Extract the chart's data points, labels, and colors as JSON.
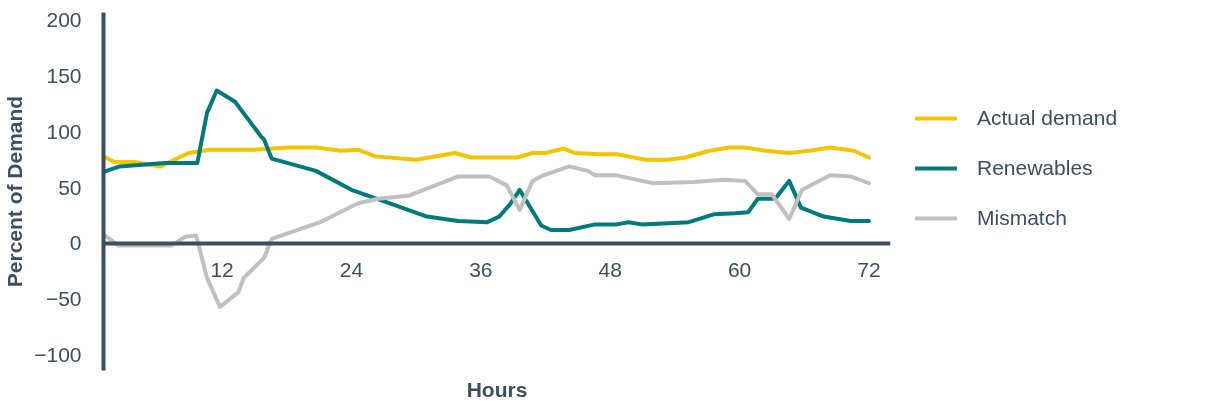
{
  "chart_data": {
    "type": "line",
    "xlabel": "Hours",
    "ylabel": "Percent of Demand",
    "xlim": [
      1,
      74
    ],
    "ylim": [
      -114,
      207
    ],
    "xticks": [
      12,
      24,
      36,
      48,
      60,
      72
    ],
    "yticks": [
      -100,
      -50,
      0,
      50,
      100,
      150,
      200
    ],
    "grid": false,
    "legend": "right",
    "line_style": "solid",
    "marker": "none",
    "series": [
      {
        "name": "Actual demand",
        "color": "#f5c400",
        "x": [
          1,
          2,
          3.8,
          6.3,
          8.9,
          10.8,
          15,
          18.2,
          20.7,
          23,
          24.6,
          26.2,
          30,
          33.6,
          35.1,
          39.4,
          40.8,
          42,
          43.7,
          44.7,
          47,
          48.6,
          51.3,
          53.4,
          55,
          57.2,
          59.1,
          60.5,
          62.4,
          64.6,
          66.5,
          68.4,
          70.6,
          72
        ],
        "values": [
          78,
          73,
          73,
          69,
          81,
          84,
          84,
          86,
          86,
          83,
          84,
          78,
          75,
          81,
          77,
          77,
          81,
          81,
          85,
          81,
          80,
          80,
          75,
          75,
          77,
          83,
          86,
          86,
          83,
          81,
          83,
          86,
          83,
          77
        ]
      },
      {
        "name": "Renewables",
        "color": "#007a7a",
        "x": [
          1,
          2.5,
          6.7,
          9.7,
          10.6,
          11.5,
          13.2,
          15.6,
          15.9,
          16.6,
          19.2,
          20.7,
          24,
          26.9,
          31,
          33.9,
          36.6,
          37.7,
          38.7,
          39.6,
          41.6,
          42.5,
          44.2,
          46.6,
          48.6,
          49.7,
          50.9,
          53.4,
          55.3,
          57.6,
          59.6,
          60.8,
          61.7,
          63.3,
          64.6,
          65.7,
          67.8,
          70.3,
          72
        ],
        "values": [
          64,
          69,
          72,
          72,
          117,
          137,
          127,
          96,
          93,
          76,
          69,
          65,
          48,
          38,
          24,
          20,
          19,
          24,
          35,
          48,
          16,
          12,
          12,
          17,
          17,
          19,
          17,
          18,
          19,
          26,
          27,
          28,
          40,
          40,
          56,
          32,
          24,
          20,
          20
        ]
      },
      {
        "name": "Mismatch",
        "color": "#c0c0c0",
        "x": [
          1,
          2.4,
          7.3,
          8.6,
          9.6,
          10.6,
          11.8,
          13.5,
          14,
          15.9,
          16.6,
          21.1,
          24.6,
          26.5,
          29.4,
          33.9,
          36.8,
          38.4,
          39.6,
          40.8,
          41.8,
          44.2,
          45.9,
          46.6,
          48.6,
          51.9,
          55.7,
          58.6,
          60.5,
          61.7,
          63,
          64.6,
          65.8,
          68.4,
          70.3,
          72
        ],
        "values": [
          8,
          -2,
          -2,
          6,
          7,
          -31,
          -57,
          -44,
          -31,
          -13,
          4,
          19,
          36,
          40,
          43,
          60,
          60,
          52,
          30,
          56,
          61,
          69,
          65,
          61,
          61,
          54,
          55,
          57,
          56,
          44,
          44,
          22,
          48,
          61,
          60,
          54
        ]
      }
    ]
  }
}
